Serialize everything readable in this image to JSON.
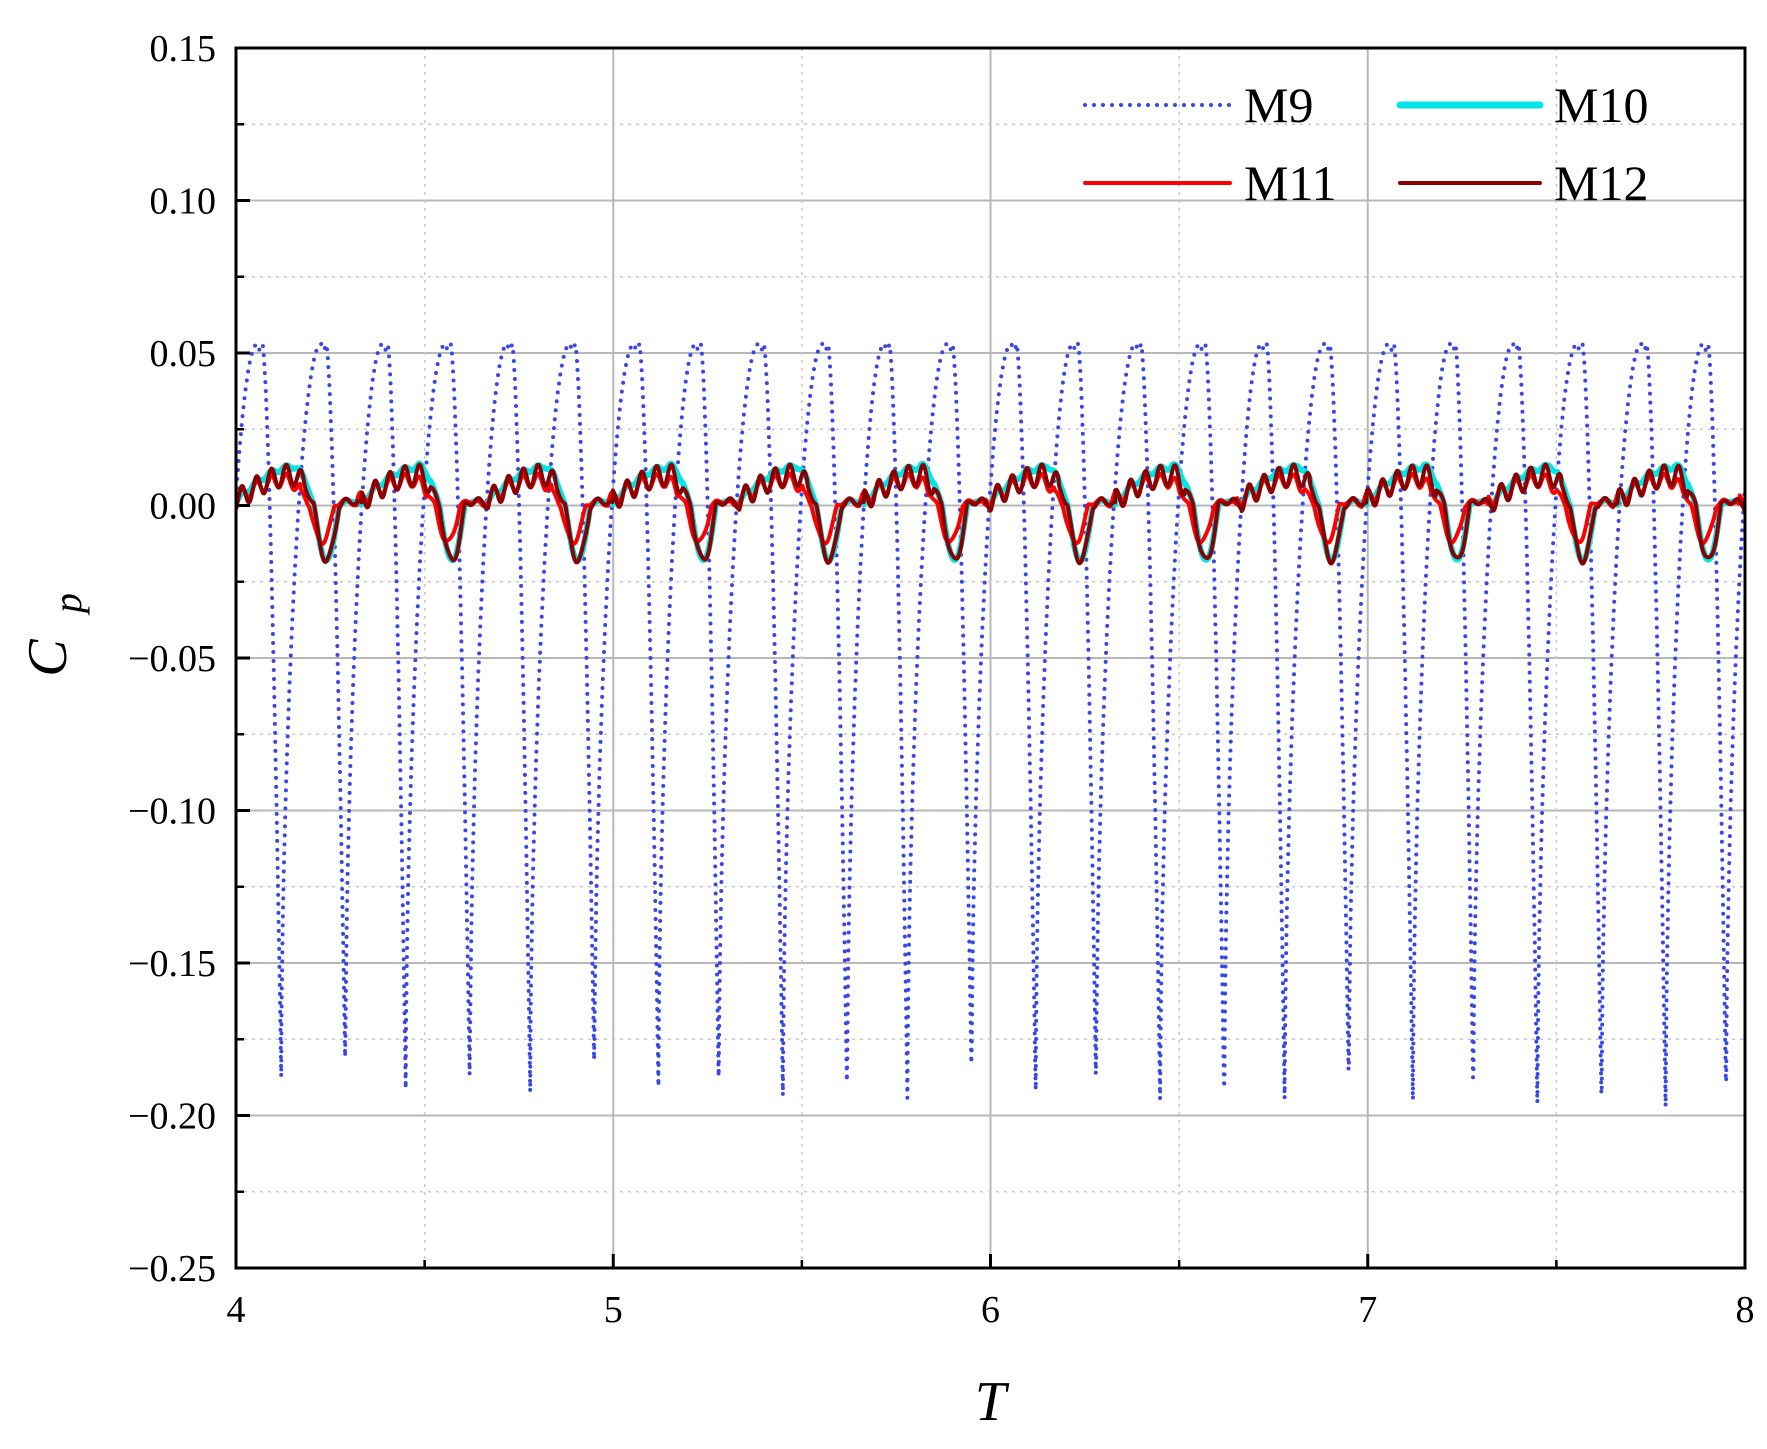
{
  "chart_data": {
    "type": "line",
    "xlabel": "T",
    "ylabel_main": "C",
    "ylabel_sub": "p",
    "xlim": [
      4,
      8
    ],
    "ylim": [
      -0.25,
      0.15
    ],
    "xticks": [
      4,
      5,
      6,
      7,
      8
    ],
    "xtick_labels": [
      "4",
      "5",
      "6",
      "7",
      "8"
    ],
    "yticks": [
      -0.25,
      -0.2,
      -0.15,
      -0.1,
      -0.05,
      0.0,
      0.05,
      0.1,
      0.15
    ],
    "ytick_labels": [
      "−0.25",
      "−0.20",
      "−0.15",
      "−0.10",
      "−0.05",
      "0.00",
      "0.05",
      "0.10",
      "0.15"
    ],
    "grid": true,
    "legend_position": "top-right",
    "series": [
      {
        "name": "M9",
        "color": "#3b46e6",
        "style": "dotted",
        "period": 0.167,
        "dip_times": [
          4.12,
          4.29,
          4.45,
          4.62,
          4.78,
          4.95,
          5.12,
          5.28,
          5.45,
          5.62,
          5.78,
          5.95,
          6.12,
          6.28,
          6.45,
          6.62,
          6.78,
          6.95,
          7.12,
          7.28,
          7.45,
          7.62,
          7.79,
          7.95
        ],
        "peak_value": 0.053,
        "dip_minima": [
          -0.188,
          -0.186,
          -0.192,
          -0.192,
          -0.193,
          -0.187,
          -0.192,
          -0.193,
          -0.195,
          -0.195,
          -0.196,
          -0.189,
          -0.194,
          -0.193,
          -0.197,
          -0.198,
          -0.197,
          -0.192,
          -0.198,
          -0.195,
          -0.199,
          -0.2,
          -0.201,
          -0.196
        ]
      },
      {
        "name": "M10",
        "color": "#00e5e5",
        "style": "solid",
        "period": 0.333,
        "peak_value": 0.013,
        "min_value": -0.018
      },
      {
        "name": "M11",
        "color": "#ff0000",
        "style": "solid",
        "period": 0.333,
        "peak_value": 0.008,
        "min_value": -0.012
      },
      {
        "name": "M12",
        "color": "#8b0000",
        "style": "solid",
        "period": 0.333,
        "peak_value": 0.01,
        "min_value": -0.018
      }
    ]
  }
}
